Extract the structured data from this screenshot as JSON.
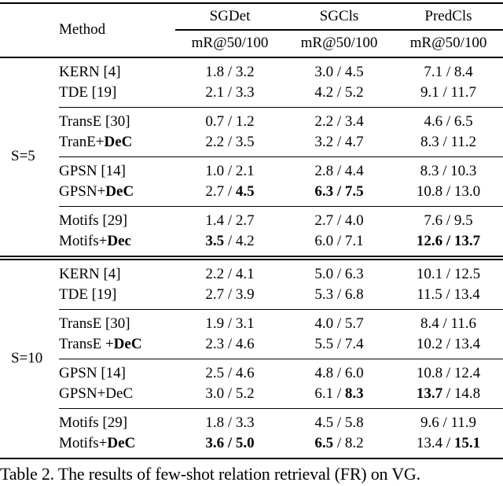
{
  "caption": "Table 2. The results of few-shot relation retrieval (FR) on VG.",
  "separator": " / ",
  "colors": {
    "text": "#000000",
    "background": "#ffffff",
    "rule": "#000000"
  },
  "table": {
    "header": {
      "method_label": "Method",
      "groups": [
        {
          "label": "SGDet",
          "sub": "mR@50/100"
        },
        {
          "label": "SGCls",
          "sub": "mR@50/100"
        },
        {
          "label": "PredCls",
          "sub": "mR@50/100"
        }
      ]
    },
    "sections": [
      {
        "label": "S=5",
        "groups": [
          {
            "rows": [
              {
                "method": {
                  "text": "KERN [4]",
                  "bold": ""
                },
                "cells": [
                  {
                    "a": "1.8",
                    "ab": false,
                    "b": "3.2",
                    "bb": false
                  },
                  {
                    "a": "3.0",
                    "ab": false,
                    "b": "4.5",
                    "bb": false
                  },
                  {
                    "a": "7.1",
                    "ab": false,
                    "b": "8.4",
                    "bb": false
                  }
                ]
              },
              {
                "method": {
                  "text": "TDE [19]",
                  "bold": ""
                },
                "cells": [
                  {
                    "a": "2.1",
                    "ab": false,
                    "b": "3.3",
                    "bb": false
                  },
                  {
                    "a": "4.2",
                    "ab": false,
                    "b": "5.2",
                    "bb": false
                  },
                  {
                    "a": "9.1",
                    "ab": false,
                    "b": "11.7",
                    "bb": false
                  }
                ]
              }
            ]
          },
          {
            "rows": [
              {
                "method": {
                  "text": "TransE [30]",
                  "bold": ""
                },
                "cells": [
                  {
                    "a": "0.7",
                    "ab": false,
                    "b": "1.2",
                    "bb": false
                  },
                  {
                    "a": "2.2",
                    "ab": false,
                    "b": "3.4",
                    "bb": false
                  },
                  {
                    "a": "4.6",
                    "ab": false,
                    "b": "6.5",
                    "bb": false
                  }
                ]
              },
              {
                "method": {
                  "text": "TranE+",
                  "bold": "DeC"
                },
                "cells": [
                  {
                    "a": "2.2",
                    "ab": false,
                    "b": "3.5",
                    "bb": false
                  },
                  {
                    "a": "3.2",
                    "ab": false,
                    "b": "4.7",
                    "bb": false
                  },
                  {
                    "a": "8.3",
                    "ab": false,
                    "b": "11.2",
                    "bb": false
                  }
                ]
              }
            ]
          },
          {
            "rows": [
              {
                "method": {
                  "text": "GPSN [14]",
                  "bold": ""
                },
                "cells": [
                  {
                    "a": "1.0",
                    "ab": false,
                    "b": "2.1",
                    "bb": false
                  },
                  {
                    "a": "2.8",
                    "ab": false,
                    "b": "4.4",
                    "bb": false
                  },
                  {
                    "a": "8.3",
                    "ab": false,
                    "b": "10.3",
                    "bb": false
                  }
                ]
              },
              {
                "method": {
                  "text": "GPSN+",
                  "bold": "DeC"
                },
                "cells": [
                  {
                    "a": "2.7",
                    "ab": false,
                    "b": "4.5",
                    "bb": true
                  },
                  {
                    "a": "6.3",
                    "ab": true,
                    "b": "7.5",
                    "bb": true
                  },
                  {
                    "a": "10.8",
                    "ab": false,
                    "b": "13.0",
                    "bb": false
                  }
                ]
              }
            ]
          },
          {
            "rows": [
              {
                "method": {
                  "text": "Motifs [29]",
                  "bold": ""
                },
                "cells": [
                  {
                    "a": "1.4",
                    "ab": false,
                    "b": "2.7",
                    "bb": false
                  },
                  {
                    "a": "2.7",
                    "ab": false,
                    "b": "4.0",
                    "bb": false
                  },
                  {
                    "a": "7.6",
                    "ab": false,
                    "b": "9.5",
                    "bb": false
                  }
                ]
              },
              {
                "method": {
                  "text": "Motifs+",
                  "bold": "Dec"
                },
                "cells": [
                  {
                    "a": "3.5",
                    "ab": true,
                    "b": "4.2",
                    "bb": false
                  },
                  {
                    "a": "6.0",
                    "ab": false,
                    "b": "7.1",
                    "bb": false
                  },
                  {
                    "a": "12.6",
                    "ab": true,
                    "b": "13.7",
                    "bb": true
                  }
                ]
              }
            ]
          }
        ]
      },
      {
        "label": "S=10",
        "groups": [
          {
            "rows": [
              {
                "method": {
                  "text": "KERN [4]",
                  "bold": ""
                },
                "cells": [
                  {
                    "a": "2.2",
                    "ab": false,
                    "b": "4.1",
                    "bb": false
                  },
                  {
                    "a": "5.0",
                    "ab": false,
                    "b": "6.3",
                    "bb": false
                  },
                  {
                    "a": "10.1",
                    "ab": false,
                    "b": "12.5",
                    "bb": false
                  }
                ]
              },
              {
                "method": {
                  "text": "TDE [19]",
                  "bold": ""
                },
                "cells": [
                  {
                    "a": "2.7",
                    "ab": false,
                    "b": "3.9",
                    "bb": false
                  },
                  {
                    "a": "5.3",
                    "ab": false,
                    "b": "6.8",
                    "bb": false
                  },
                  {
                    "a": "11.5",
                    "ab": false,
                    "b": "13.4",
                    "bb": false
                  }
                ]
              }
            ]
          },
          {
            "rows": [
              {
                "method": {
                  "text": "TransE [30]",
                  "bold": ""
                },
                "cells": [
                  {
                    "a": "1.9",
                    "ab": false,
                    "b": "3.1",
                    "bb": false
                  },
                  {
                    "a": "4.0",
                    "ab": false,
                    "b": "5.7",
                    "bb": false
                  },
                  {
                    "a": "8.4",
                    "ab": false,
                    "b": "11.6",
                    "bb": false
                  }
                ]
              },
              {
                "method": {
                  "text": "TransE +",
                  "bold": "DeC"
                },
                "cells": [
                  {
                    "a": "2.3",
                    "ab": false,
                    "b": "4.6",
                    "bb": false
                  },
                  {
                    "a": "5.5",
                    "ab": false,
                    "b": "7.4",
                    "bb": false
                  },
                  {
                    "a": "10.2",
                    "ab": false,
                    "b": "13.4",
                    "bb": false
                  }
                ]
              }
            ]
          },
          {
            "rows": [
              {
                "method": {
                  "text": "GPSN [14]",
                  "bold": ""
                },
                "cells": [
                  {
                    "a": "2.5",
                    "ab": false,
                    "b": "4.6",
                    "bb": false
                  },
                  {
                    "a": "4.8",
                    "ab": false,
                    "b": "6.0",
                    "bb": false
                  },
                  {
                    "a": "10.8",
                    "ab": false,
                    "b": "12.4",
                    "bb": false
                  }
                ]
              },
              {
                "method": {
                  "text": "GPSN+DeC",
                  "bold": ""
                },
                "cells": [
                  {
                    "a": "3.0",
                    "ab": false,
                    "b": "5.2",
                    "bb": false
                  },
                  {
                    "a": "6.1",
                    "ab": false,
                    "b": "8.3",
                    "bb": true
                  },
                  {
                    "a": "13.7",
                    "ab": true,
                    "b": "14.8",
                    "bb": false
                  }
                ]
              }
            ]
          },
          {
            "rows": [
              {
                "method": {
                  "text": "Motifs [29]",
                  "bold": ""
                },
                "cells": [
                  {
                    "a": "1.8",
                    "ab": false,
                    "b": "3.3",
                    "bb": false
                  },
                  {
                    "a": "4.5",
                    "ab": false,
                    "b": "5.8",
                    "bb": false
                  },
                  {
                    "a": "9.6",
                    "ab": false,
                    "b": "11.9",
                    "bb": false
                  }
                ]
              },
              {
                "method": {
                  "text": "Motifs+",
                  "bold": "DeC"
                },
                "cells": [
                  {
                    "a": "3.6",
                    "ab": true,
                    "b": "5.0",
                    "bb": true
                  },
                  {
                    "a": "6.5",
                    "ab": true,
                    "b": "8.2",
                    "bb": false
                  },
                  {
                    "a": "13.4",
                    "ab": false,
                    "b": "15.1",
                    "bb": true
                  }
                ]
              }
            ]
          }
        ]
      }
    ]
  }
}
